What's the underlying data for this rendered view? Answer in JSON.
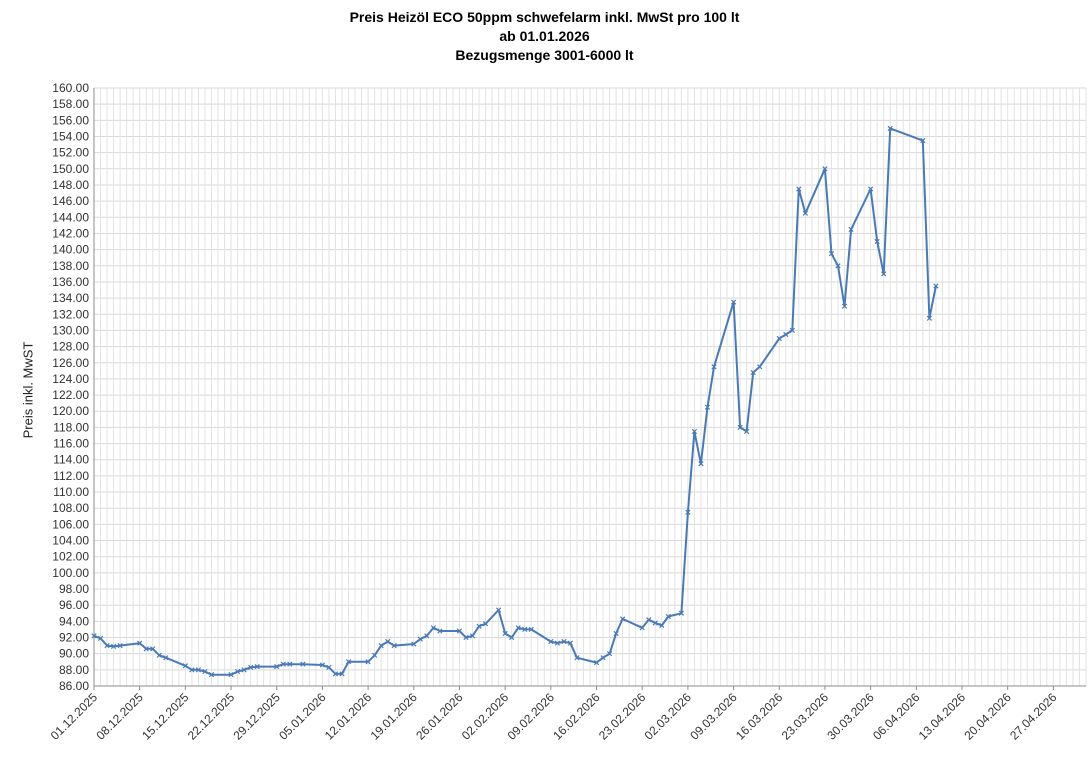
{
  "chart_data": {
    "type": "line",
    "title": "Preis Heizöl ECO 50ppm schwefelarm inkl. MwSt pro 100 lt",
    "subtitle_lines": [
      "ab 01.01.2026",
      "Bezugsmenge 3001-6000 lt"
    ],
    "xlabel": "",
    "ylabel": "Preis inkl. MwST",
    "ylim": [
      86,
      160
    ],
    "y_tick_step": 2,
    "xlim": [
      "2025-12-01",
      "2026-05-02"
    ],
    "x_tick_labels": [
      "01.12.2025",
      "08.12.2025",
      "15.12.2025",
      "22.12.2025",
      "29.12.2025",
      "05.01.2026",
      "12.01.2026",
      "19.01.2026",
      "26.01.2026",
      "02.02.2026",
      "09.02.2026",
      "16.02.2026",
      "23.02.2026",
      "02.03.2026",
      "09.03.2026",
      "16.03.2026",
      "23.03.2026",
      "30.03.2026",
      "06.04.2026",
      "13.04.2026",
      "20.04.2026",
      "27.04.2026"
    ],
    "grid": true,
    "legend": "none",
    "series_color": "#4a7ab5",
    "series": [
      {
        "values": [
          [
            "2025-12-01",
            92.2
          ],
          [
            "2025-12-02",
            91.9
          ],
          [
            "2025-12-03",
            91.0
          ],
          [
            "2025-12-04",
            90.9
          ],
          [
            "2025-12-05",
            91.0
          ],
          [
            "2025-12-08",
            91.3
          ],
          [
            "2025-12-09",
            90.6
          ],
          [
            "2025-12-10",
            90.6
          ],
          [
            "2025-12-11",
            89.8
          ],
          [
            "2025-12-12",
            89.5
          ],
          [
            "2025-12-15",
            88.5
          ],
          [
            "2025-12-16",
            88.0
          ],
          [
            "2025-12-17",
            88.0
          ],
          [
            "2025-12-18",
            87.8
          ],
          [
            "2025-12-19",
            87.4
          ],
          [
            "2025-12-22",
            87.4
          ],
          [
            "2025-12-23",
            87.8
          ],
          [
            "2025-12-24",
            88.0
          ],
          [
            "2025-12-25",
            88.3
          ],
          [
            "2025-12-26",
            88.4
          ],
          [
            "2025-12-29",
            88.4
          ],
          [
            "2025-12-30",
            88.7
          ],
          [
            "2025-12-31",
            88.7
          ],
          [
            "2026-01-02",
            88.7
          ],
          [
            "2026-01-05",
            88.6
          ],
          [
            "2026-01-06",
            88.3
          ],
          [
            "2026-01-07",
            87.5
          ],
          [
            "2026-01-08",
            87.5
          ],
          [
            "2026-01-09",
            89.0
          ],
          [
            "2026-01-12",
            89.0
          ],
          [
            "2026-01-13",
            89.8
          ],
          [
            "2026-01-14",
            91.0
          ],
          [
            "2026-01-15",
            91.5
          ],
          [
            "2026-01-16",
            91.0
          ],
          [
            "2026-01-19",
            91.2
          ],
          [
            "2026-01-20",
            91.8
          ],
          [
            "2026-01-21",
            92.2
          ],
          [
            "2026-01-22",
            93.2
          ],
          [
            "2026-01-23",
            92.8
          ],
          [
            "2026-01-26",
            92.8
          ],
          [
            "2026-01-27",
            92.0
          ],
          [
            "2026-01-28",
            92.2
          ],
          [
            "2026-01-29",
            93.4
          ],
          [
            "2026-01-30",
            93.7
          ],
          [
            "2026-02-01",
            95.4
          ],
          [
            "2026-02-02",
            92.5
          ],
          [
            "2026-02-03",
            92.0
          ],
          [
            "2026-02-04",
            93.2
          ],
          [
            "2026-02-05",
            93.0
          ],
          [
            "2026-02-06",
            93.0
          ],
          [
            "2026-02-09",
            91.5
          ],
          [
            "2026-02-10",
            91.3
          ],
          [
            "2026-02-11",
            91.5
          ],
          [
            "2026-02-12",
            91.3
          ],
          [
            "2026-02-13",
            89.5
          ],
          [
            "2026-02-16",
            88.9
          ],
          [
            "2026-02-17",
            89.5
          ],
          [
            "2026-02-18",
            90.0
          ],
          [
            "2026-02-19",
            92.5
          ],
          [
            "2026-02-20",
            94.3
          ],
          [
            "2026-02-23",
            93.2
          ],
          [
            "2026-02-24",
            94.2
          ],
          [
            "2026-02-25",
            93.8
          ],
          [
            "2026-02-26",
            93.5
          ],
          [
            "2026-02-27",
            94.6
          ],
          [
            "2026-03-01",
            95.0
          ],
          [
            "2026-03-02",
            107.5
          ],
          [
            "2026-03-03",
            117.5
          ],
          [
            "2026-03-04",
            113.5
          ],
          [
            "2026-03-05",
            120.5
          ],
          [
            "2026-03-06",
            125.5
          ],
          [
            "2026-03-09",
            133.5
          ],
          [
            "2026-03-10",
            118.0
          ],
          [
            "2026-03-11",
            117.5
          ],
          [
            "2026-03-12",
            124.8
          ],
          [
            "2026-03-13",
            125.5
          ],
          [
            "2026-03-16",
            129.0
          ],
          [
            "2026-03-17",
            129.5
          ],
          [
            "2026-03-18",
            130.0
          ],
          [
            "2026-03-19",
            147.5
          ],
          [
            "2026-03-20",
            144.5
          ],
          [
            "2026-03-23",
            150.0
          ],
          [
            "2026-03-24",
            139.5
          ],
          [
            "2026-03-25",
            138.0
          ],
          [
            "2026-03-26",
            133.0
          ],
          [
            "2026-03-27",
            142.5
          ],
          [
            "2026-03-30",
            147.5
          ],
          [
            "2026-03-31",
            141.0
          ],
          [
            "2026-04-01",
            137.0
          ],
          [
            "2026-04-02",
            155.0
          ],
          [
            "2026-04-07",
            153.5
          ],
          [
            "2026-04-08",
            131.5
          ],
          [
            "2026-04-09",
            135.5
          ]
        ]
      }
    ]
  }
}
